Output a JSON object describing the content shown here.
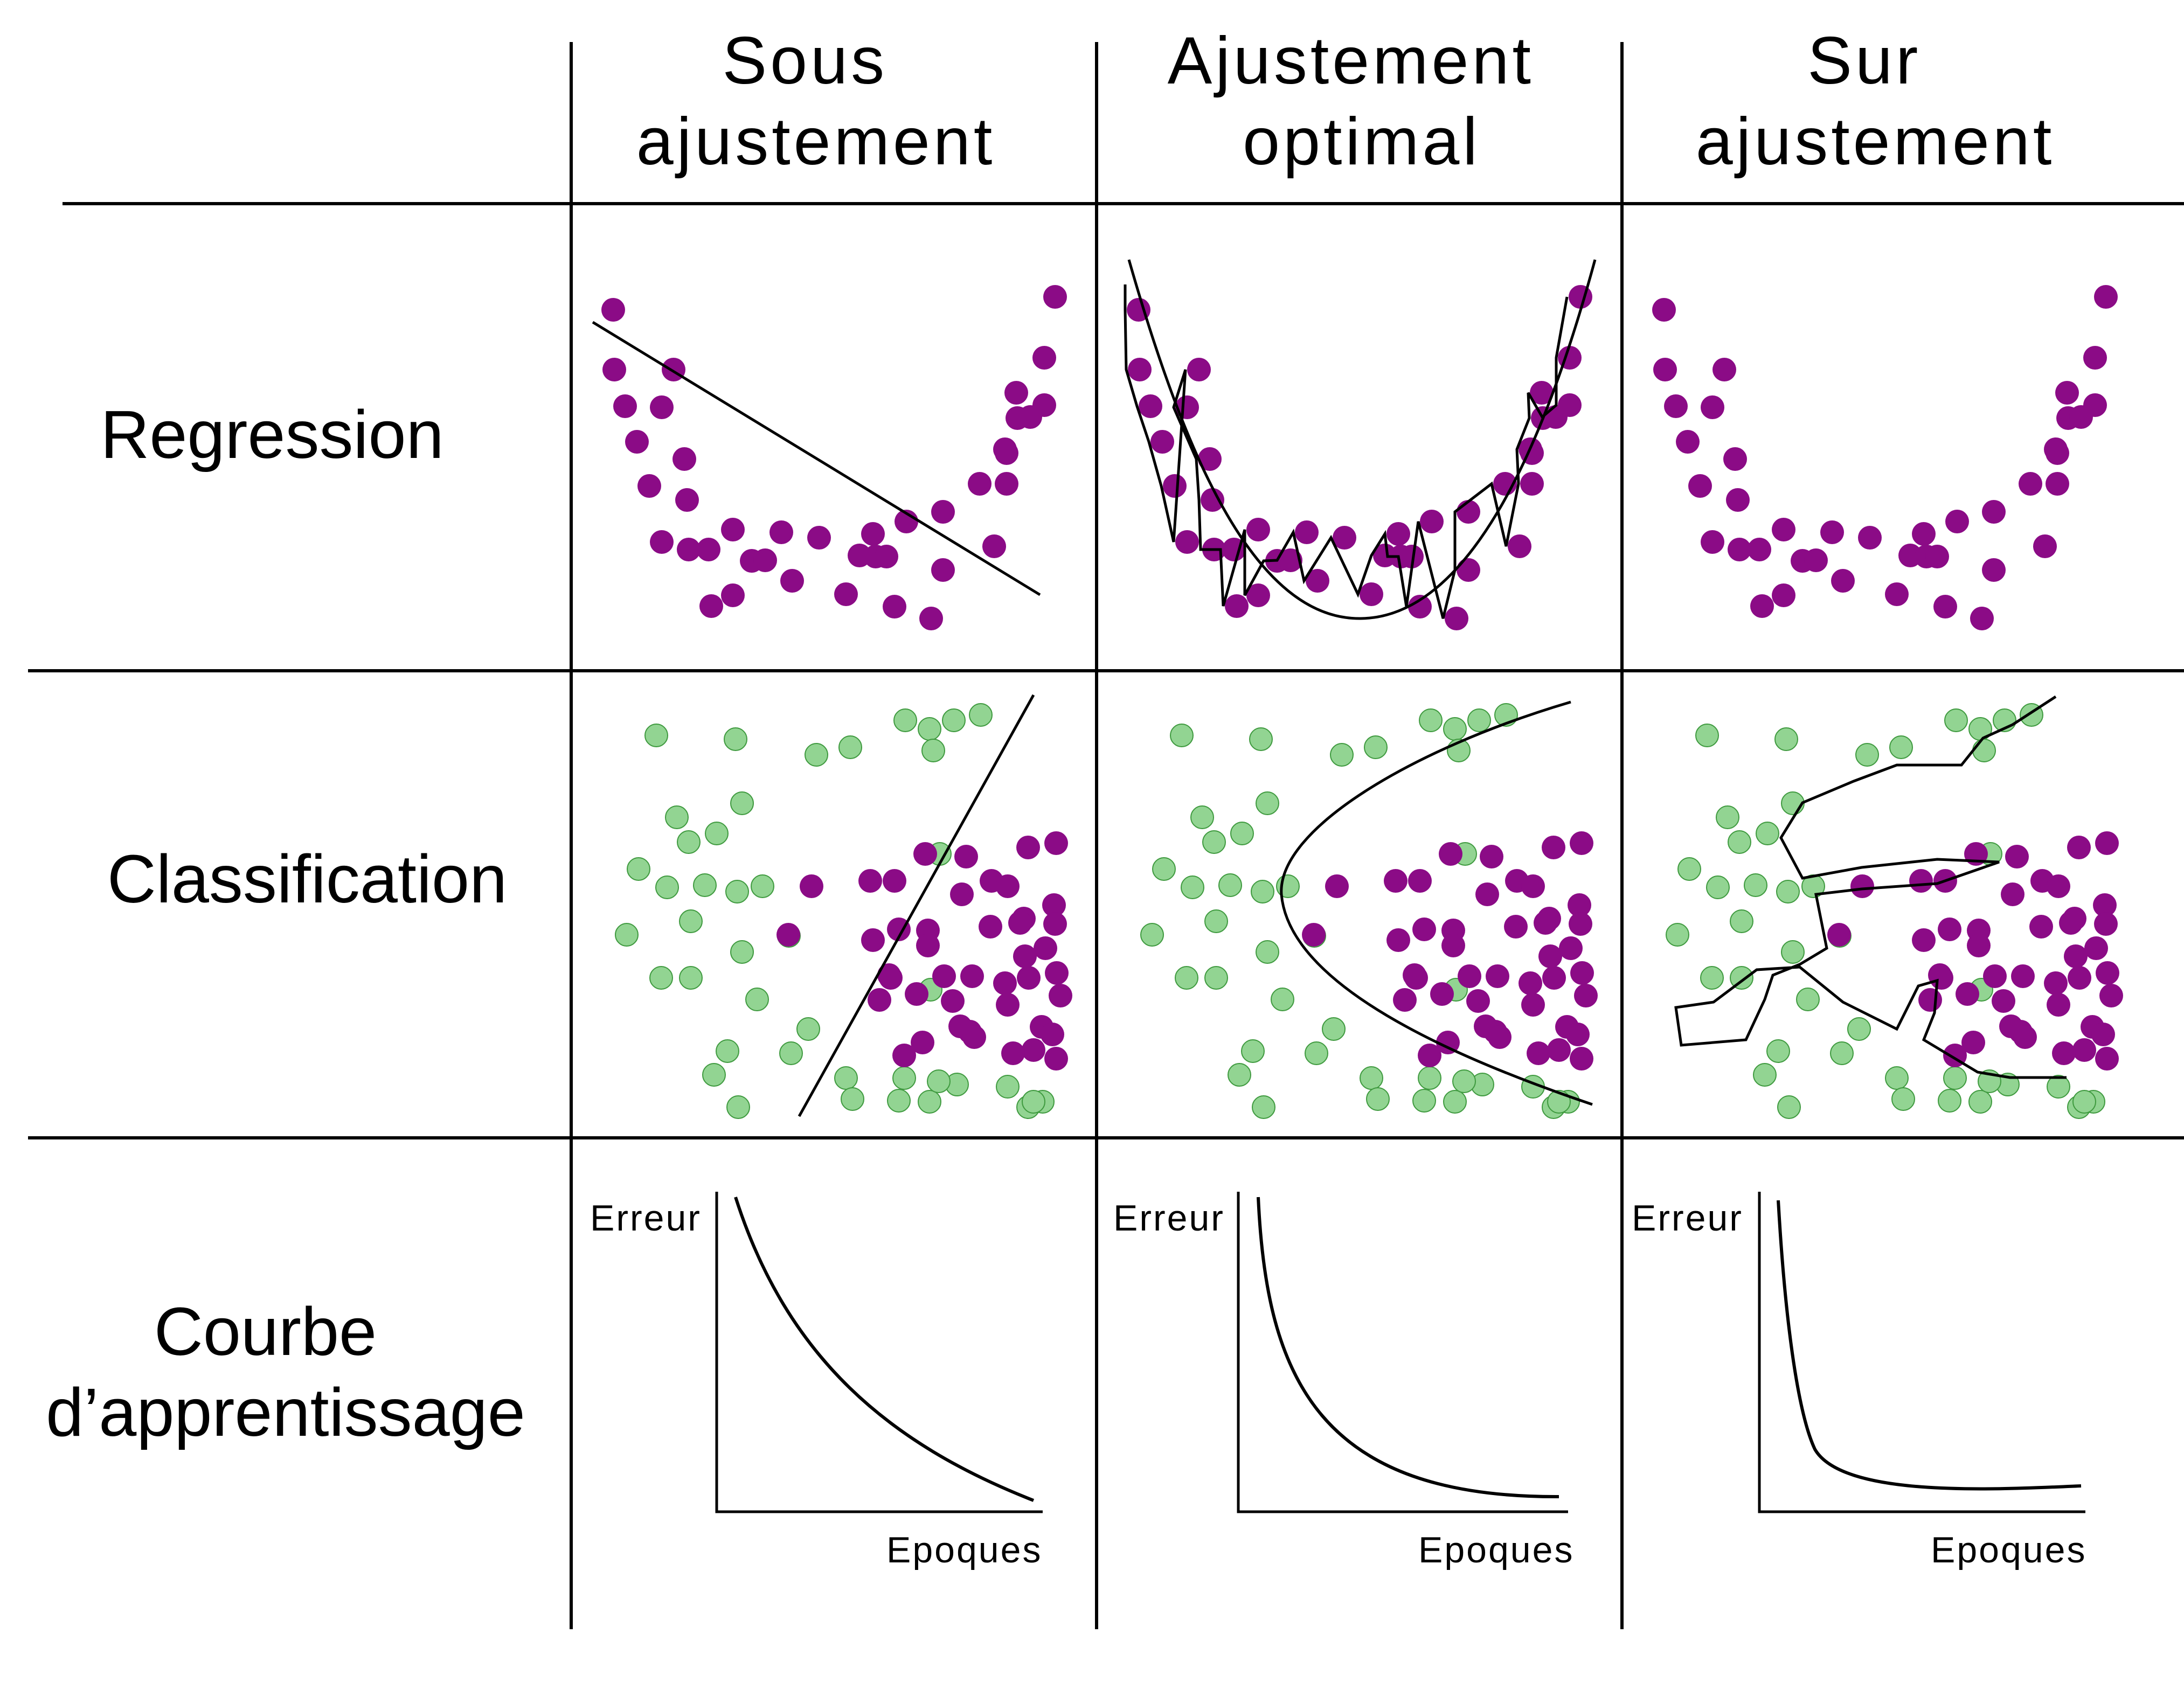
{
  "columns": [
    {
      "label_lines": [
        "Sous",
        "ajustement"
      ]
    },
    {
      "label_lines": [
        "Ajustement",
        "optimal"
      ]
    },
    {
      "label_lines": [
        "Sur",
        "ajustement"
      ]
    }
  ],
  "rows": [
    {
      "label_lines": [
        "Regression"
      ]
    },
    {
      "label_lines": [
        "Classification"
      ]
    },
    {
      "label_lines": [
        "Courbe",
        "d’apprentissage"
      ]
    }
  ],
  "learning_curve": {
    "ylabel": "Erreur",
    "xlabel": "Epoques"
  },
  "colors": {
    "class_a_fill": "#8b0b86",
    "class_b_fill": "#92d492",
    "class_b_stroke": "#3f9a3f",
    "line": "#000000"
  }
}
